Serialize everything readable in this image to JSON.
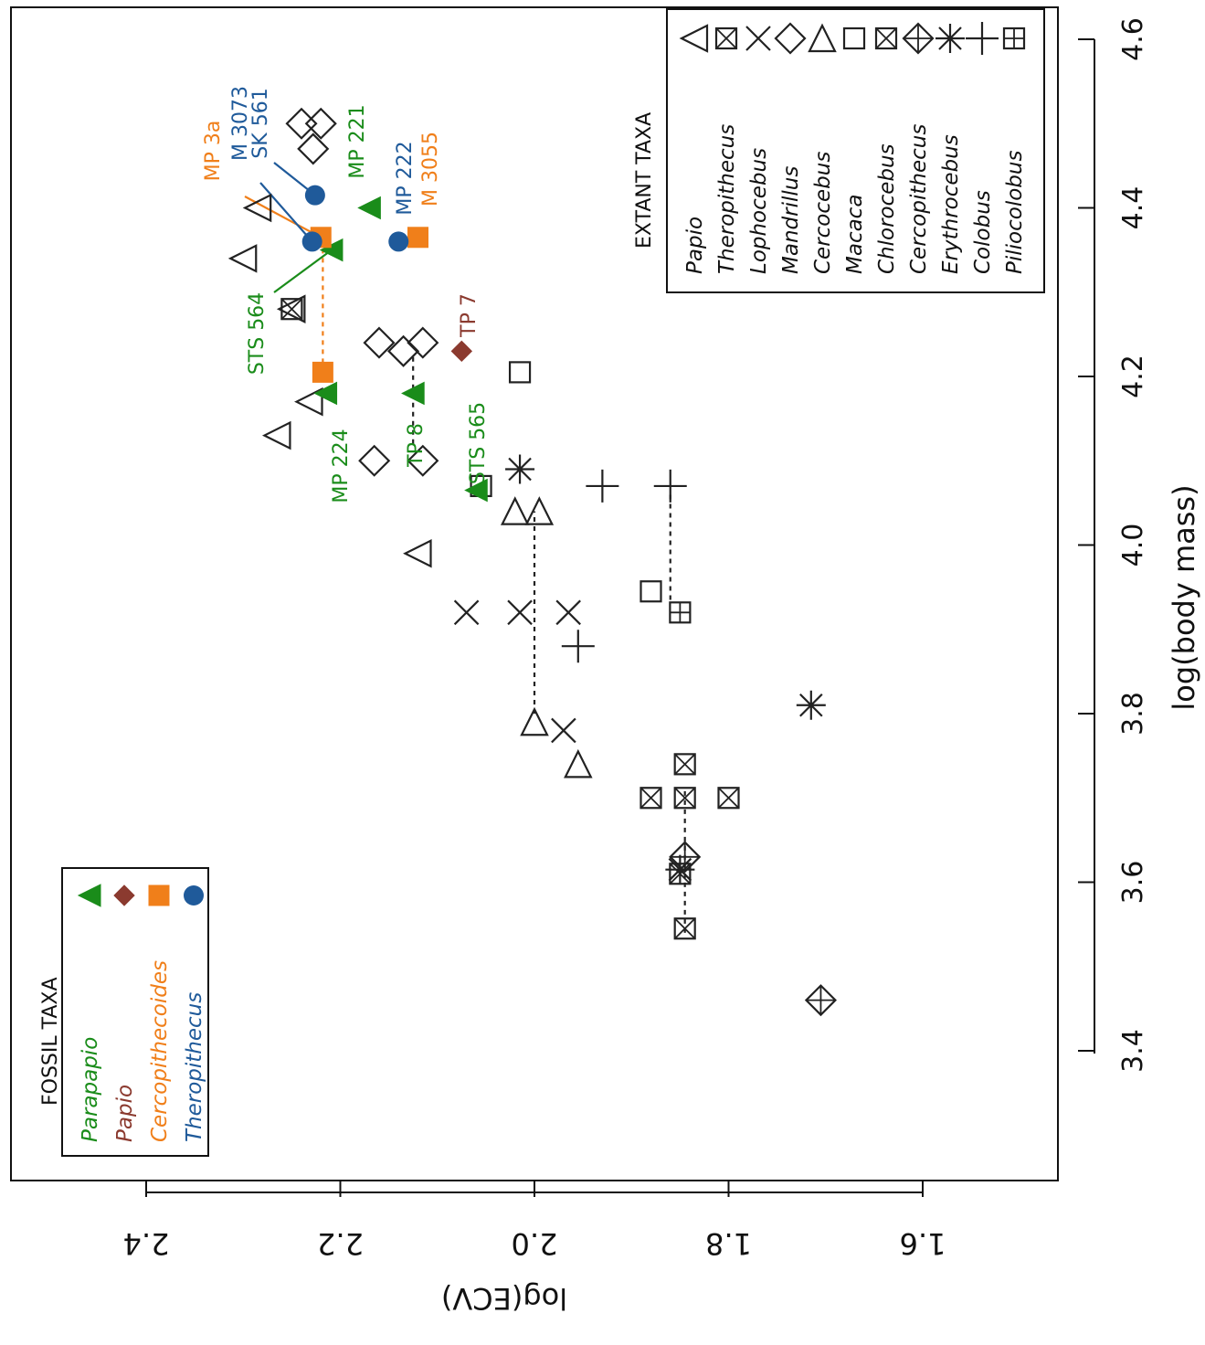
{
  "chart_data": {
    "type": "scatter",
    "orientation": "rotated-90",
    "xlabel": "log(body mass)",
    "ylabel": "log(ECV)",
    "x_ticks": [
      "3.4",
      "3.6",
      "3.8",
      "4.0",
      "4.2",
      "4.4",
      "4.6"
    ],
    "y_ticks": [
      "2.4",
      "2.2",
      "2.0",
      "1.8",
      "1.6"
    ],
    "xlim": [
      3.28,
      4.65
    ],
    "ylim": [
      1.535,
      2.535
    ],
    "colors": {
      "Parapapio": "#1a8c1a",
      "Papio": "#8b3a2f",
      "Cercopithecoides": "#f07f1a",
      "Theropithecus": "#1f5a9a",
      "extant": "#222222"
    },
    "fossil_legend": {
      "title": "FOSSIL TAXA",
      "entries": [
        {
          "name": "Parapapio",
          "marker": "triangle-filled",
          "color": "#1a8c1a"
        },
        {
          "name": "Papio",
          "marker": "diamond-filled",
          "color": "#8b3a2f"
        },
        {
          "name": "Cercopithecoides",
          "marker": "square-filled",
          "color": "#f07f1a"
        },
        {
          "name": "Theropithecus",
          "marker": "circle-filled",
          "color": "#1f5a9a"
        }
      ]
    },
    "extant_legend": {
      "title": "EXTANT TAXA",
      "entries": [
        {
          "name": "Papio",
          "marker": "triangle-open"
        },
        {
          "name": "Theropithecus",
          "marker": "square-x"
        },
        {
          "name": "Lophocebus",
          "marker": "cross-x"
        },
        {
          "name": "Mandrillus",
          "marker": "diamond-open"
        },
        {
          "name": "Cercocebus",
          "marker": "triangle-right-open"
        },
        {
          "name": "Macaca",
          "marker": "square-open"
        },
        {
          "name": "Chlorocebus",
          "marker": "square-x"
        },
        {
          "name": "Cercopithecus",
          "marker": "diamond-plus"
        },
        {
          "name": "Erythrocebus",
          "marker": "asterisk"
        },
        {
          "name": "Colobus",
          "marker": "plus"
        },
        {
          "name": "Piliocolobus",
          "marker": "square-plus"
        }
      ]
    },
    "fossils": [
      {
        "label": "MP 221",
        "taxon": "Parapapio",
        "x": 4.4,
        "y": 2.17
      },
      {
        "label": "STS 564",
        "taxon": "Parapapio",
        "x": 4.35,
        "y": 2.209
      },
      {
        "label": "MP 224",
        "taxon": "Parapapio",
        "x": 4.18,
        "y": 2.215
      },
      {
        "label": "TP 8",
        "taxon": "Parapapio",
        "x": 4.18,
        "y": 2.125
      },
      {
        "label": "STS 565",
        "taxon": "Parapapio",
        "x": 4.065,
        "y": 2.06
      },
      {
        "label": "TP 7",
        "taxon": "Papio",
        "x": 4.23,
        "y": 2.075
      },
      {
        "label": "MP 3a",
        "taxon": "Cercopithecoides",
        "x": 4.365,
        "y": 2.22
      },
      {
        "label": "M 3055",
        "taxon": "Cercopithecoides",
        "x": 4.365,
        "y": 2.12
      },
      {
        "label": "",
        "taxon": "Cercopithecoides",
        "x": 4.205,
        "y": 2.218
      },
      {
        "label": "M 3073",
        "taxon": "Theropithecus",
        "x": 4.36,
        "y": 2.229
      },
      {
        "label": "SK 561",
        "taxon": "Theropithecus",
        "x": 4.415,
        "y": 2.226
      },
      {
        "label": "MP 222",
        "taxon": "Theropithecus",
        "x": 4.36,
        "y": 2.14
      }
    ],
    "extant": [
      {
        "taxon": "Papio",
        "x": 4.4,
        "y": 2.285
      },
      {
        "taxon": "Papio",
        "x": 4.34,
        "y": 2.3
      },
      {
        "taxon": "Papio",
        "x": 4.28,
        "y": 2.25
      },
      {
        "taxon": "Papio",
        "x": 4.17,
        "y": 2.232
      },
      {
        "taxon": "Papio",
        "x": 4.13,
        "y": 2.265
      },
      {
        "taxon": "Papio",
        "x": 3.99,
        "y": 2.12
      },
      {
        "taxon": "Theropithecus",
        "x": 4.28,
        "y": 2.25
      },
      {
        "taxon": "Lophocebus",
        "x": 3.92,
        "y": 2.07
      },
      {
        "taxon": "Lophocebus",
        "x": 3.92,
        "y": 2.015
      },
      {
        "taxon": "Lophocebus",
        "x": 3.92,
        "y": 1.965
      },
      {
        "taxon": "Lophocebus",
        "x": 3.78,
        "y": 1.97
      },
      {
        "taxon": "Mandrillus",
        "x": 4.5,
        "y": 2.24
      },
      {
        "taxon": "Mandrillus",
        "x": 4.5,
        "y": 2.22
      },
      {
        "taxon": "Mandrillus",
        "x": 4.47,
        "y": 2.228
      },
      {
        "taxon": "Mandrillus",
        "x": 4.24,
        "y": 2.16
      },
      {
        "taxon": "Mandrillus",
        "x": 4.24,
        "y": 2.115
      },
      {
        "taxon": "Mandrillus",
        "x": 4.23,
        "y": 2.135
      },
      {
        "taxon": "Mandrillus",
        "x": 4.1,
        "y": 2.165
      },
      {
        "taxon": "Mandrillus",
        "x": 4.1,
        "y": 2.115
      },
      {
        "taxon": "Cercocebus",
        "x": 4.04,
        "y": 2.02
      },
      {
        "taxon": "Cercocebus",
        "x": 4.04,
        "y": 1.995
      },
      {
        "taxon": "Cercocebus",
        "x": 3.79,
        "y": 2.0
      },
      {
        "taxon": "Cercocebus",
        "x": 3.74,
        "y": 1.955
      },
      {
        "taxon": "Macaca",
        "x": 4.205,
        "y": 2.015
      },
      {
        "taxon": "Macaca",
        "x": 4.07,
        "y": 2.055
      },
      {
        "taxon": "Macaca",
        "x": 3.945,
        "y": 1.88
      },
      {
        "taxon": "Chlorocebus",
        "x": 3.74,
        "y": 1.845
      },
      {
        "taxon": "Chlorocebus",
        "x": 3.7,
        "y": 1.88
      },
      {
        "taxon": "Chlorocebus",
        "x": 3.7,
        "y": 1.845
      },
      {
        "taxon": "Chlorocebus",
        "x": 3.7,
        "y": 1.8
      },
      {
        "taxon": "Chlorocebus",
        "x": 3.61,
        "y": 1.85
      },
      {
        "taxon": "Chlorocebus",
        "x": 3.545,
        "y": 1.845
      },
      {
        "taxon": "Cercopithecus",
        "x": 3.63,
        "y": 1.845
      },
      {
        "taxon": "Cercopithecus",
        "x": 3.46,
        "y": 1.705
      },
      {
        "taxon": "Erythrocebus",
        "x": 4.09,
        "y": 2.015
      },
      {
        "taxon": "Erythrocebus",
        "x": 3.81,
        "y": 1.715
      },
      {
        "taxon": "Erythrocebus",
        "x": 3.615,
        "y": 1.85
      },
      {
        "taxon": "Colobus",
        "x": 4.07,
        "y": 1.93
      },
      {
        "taxon": "Colobus",
        "x": 4.07,
        "y": 1.86
      },
      {
        "taxon": "Colobus",
        "x": 3.88,
        "y": 1.955
      },
      {
        "taxon": "Piliocolobus",
        "x": 3.92,
        "y": 1.85
      }
    ],
    "dotted_links": [
      {
        "x": [
          4.205,
          4.365
        ],
        "y": [
          2.218,
          2.218
        ],
        "color": "#f07f1a"
      },
      {
        "x": [
          4.12,
          4.225
        ],
        "y": [
          2.125,
          2.125
        ],
        "color": "#222222"
      },
      {
        "x": [
          3.8,
          4.04
        ],
        "y": [
          2.0,
          2.0
        ],
        "color": "#222222"
      },
      {
        "x": [
          3.935,
          4.065
        ],
        "y": [
          1.86,
          1.86
        ],
        "color": "#222222"
      },
      {
        "x": [
          3.54,
          3.71
        ],
        "y": [
          1.845,
          1.845
        ],
        "color": "#222222"
      }
    ],
    "leader_lines": [
      {
        "label": "MP 3a",
        "color": "#f07f1a"
      },
      {
        "label": "M 3073",
        "color": "#1f5a9a"
      },
      {
        "label": "SK 561",
        "color": "#1f5a9a"
      },
      {
        "label": "STS 564",
        "color": "#1a8c1a"
      }
    ]
  }
}
